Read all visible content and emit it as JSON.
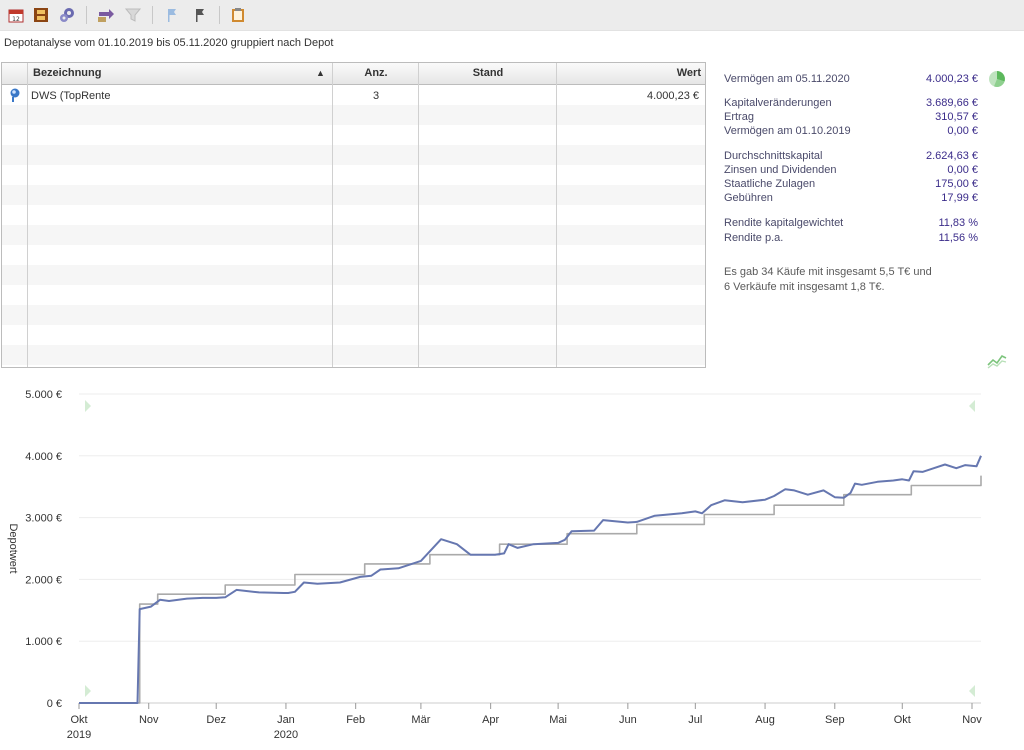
{
  "toolbar": {
    "buttons": [
      {
        "name": "calendar-icon",
        "color": "#c0392b"
      },
      {
        "name": "film-icon",
        "color": "#8b4513"
      },
      {
        "name": "gears-icon",
        "color": "#5a5aa0"
      },
      {
        "name": "transfer-icon",
        "color": "#7a5aa0"
      },
      {
        "name": "filter-icon",
        "color": "#c8c8c8"
      },
      {
        "name": "flag-blue-icon",
        "color": "#9bbbe0"
      },
      {
        "name": "flag-dark-icon",
        "color": "#4a4a4a"
      },
      {
        "name": "clipboard-icon",
        "color": "#d08a30"
      }
    ]
  },
  "subtitle": "Depotanalyse vom 01.10.2019 bis 05.11.2020 gruppiert nach Depot",
  "table": {
    "headers": {
      "bezeichnung": "Bezeichnung",
      "sort_indicator": "▲",
      "anz": "Anz.",
      "stand": "Stand",
      "wert": "Wert"
    },
    "rows": [
      {
        "bezeichnung": "DWS (TopRente",
        "anz": "3",
        "stand": "",
        "wert": "4.000,23 €"
      }
    ]
  },
  "summary": {
    "vermoegen_end": {
      "label": "Vermögen am 05.11.2020",
      "value": "4.000,23 €"
    },
    "kapitalveraenderungen": {
      "label": "Kapitalveränderungen",
      "value": "3.689,66 €"
    },
    "ertrag": {
      "label": "Ertrag",
      "value": "310,57 €"
    },
    "vermoegen_start": {
      "label": "Vermögen am 01.10.2019",
      "value": "0,00 €"
    },
    "durchschnittskapital": {
      "label": "Durchschnittskapital",
      "value": "2.624,63 €"
    },
    "zinsen": {
      "label": "Zinsen und Dividenden",
      "value": "0,00 €"
    },
    "zulagen": {
      "label": "Staatliche Zulagen",
      "value": "175,00 €"
    },
    "gebuehren": {
      "label": "Gebühren",
      "value": "17,99 €"
    },
    "rendite_kg": {
      "label": "Rendite kapitalgewichtet",
      "value": "11,83 %"
    },
    "rendite_pa": {
      "label": "Rendite p.a.",
      "value": "11,56 %"
    },
    "note_line1": "Es gab 34 Käufe mit insgesamt 5,5 T€ und",
    "note_line2": "6 Verkäufe mit insgesamt 1,8 T€."
  },
  "icons": {
    "pie": "pie-chart-icon",
    "trend": "trend-chart-icon",
    "depot": "depot-icon"
  },
  "colors": {
    "value_line": "#6677b0",
    "invested_line": "#aaaaaa",
    "summary_value": "#3b2c8a",
    "nav_arrow": "#d4ecd4"
  },
  "chart_data": {
    "type": "line",
    "ylabel": "Depotwert",
    "ylim": [
      0,
      5000
    ],
    "yticks": [
      {
        "value": 0,
        "label": "0 €"
      },
      {
        "value": 1000,
        "label": "1.000 €"
      },
      {
        "value": 2000,
        "label": "2.000 €"
      },
      {
        "value": 3000,
        "label": "3.000 €"
      },
      {
        "value": 4000,
        "label": "4.000 €"
      },
      {
        "value": 5000,
        "label": "5.000 €"
      }
    ],
    "xlim": [
      "2019-10-01",
      "2020-11-05"
    ],
    "xticks": [
      {
        "date": "2019-10-01",
        "label": "Okt",
        "label2": "2019"
      },
      {
        "date": "2019-11-01",
        "label": "Nov",
        "label2": ""
      },
      {
        "date": "2019-12-01",
        "label": "Dez",
        "label2": ""
      },
      {
        "date": "2020-01-01",
        "label": "Jan",
        "label2": "2020"
      },
      {
        "date": "2020-02-01",
        "label": "Feb",
        "label2": ""
      },
      {
        "date": "2020-03-01",
        "label": "Mär",
        "label2": ""
      },
      {
        "date": "2020-04-01",
        "label": "Apr",
        "label2": ""
      },
      {
        "date": "2020-05-01",
        "label": "Mai",
        "label2": ""
      },
      {
        "date": "2020-06-01",
        "label": "Jun",
        "label2": ""
      },
      {
        "date": "2020-07-01",
        "label": "Jul",
        "label2": ""
      },
      {
        "date": "2020-08-01",
        "label": "Aug",
        "label2": ""
      },
      {
        "date": "2020-09-01",
        "label": "Sep",
        "label2": ""
      },
      {
        "date": "2020-10-01",
        "label": "Okt",
        "label2": ""
      },
      {
        "date": "2020-11-01",
        "label": "Nov",
        "label2": ""
      }
    ],
    "grid": true,
    "series": [
      {
        "step": false,
        "color": "#6677b0",
        "points": [
          [
            "2019-10-01",
            0
          ],
          [
            "2019-10-27",
            0
          ],
          [
            "2019-10-28",
            1520
          ],
          [
            "2019-11-02",
            1560
          ],
          [
            "2019-11-06",
            1670
          ],
          [
            "2019-11-10",
            1650
          ],
          [
            "2019-11-18",
            1690
          ],
          [
            "2019-11-25",
            1700
          ],
          [
            "2019-12-01",
            1700
          ],
          [
            "2019-12-05",
            1710
          ],
          [
            "2019-12-10",
            1830
          ],
          [
            "2019-12-20",
            1790
          ],
          [
            "2019-12-31",
            1780
          ],
          [
            "2020-01-02",
            1780
          ],
          [
            "2020-01-05",
            1800
          ],
          [
            "2020-01-09",
            1950
          ],
          [
            "2020-01-15",
            1930
          ],
          [
            "2020-01-25",
            1950
          ],
          [
            "2020-02-03",
            2040
          ],
          [
            "2020-02-08",
            2060
          ],
          [
            "2020-02-12",
            2160
          ],
          [
            "2020-02-20",
            2180
          ],
          [
            "2020-03-01",
            2300
          ],
          [
            "2020-03-10",
            2650
          ],
          [
            "2020-03-17",
            2570
          ],
          [
            "2020-03-23",
            2400
          ],
          [
            "2020-04-03",
            2400
          ],
          [
            "2020-04-07",
            2420
          ],
          [
            "2020-04-09",
            2570
          ],
          [
            "2020-04-13",
            2510
          ],
          [
            "2020-04-20",
            2570
          ],
          [
            "2020-05-01",
            2590
          ],
          [
            "2020-05-04",
            2640
          ],
          [
            "2020-05-07",
            2780
          ],
          [
            "2020-05-17",
            2790
          ],
          [
            "2020-05-21",
            2960
          ],
          [
            "2020-06-01",
            2920
          ],
          [
            "2020-06-05",
            2930
          ],
          [
            "2020-06-13",
            3030
          ],
          [
            "2020-06-25",
            3070
          ],
          [
            "2020-07-01",
            3100
          ],
          [
            "2020-07-04",
            3070
          ],
          [
            "2020-07-08",
            3200
          ],
          [
            "2020-07-14",
            3280
          ],
          [
            "2020-07-22",
            3250
          ],
          [
            "2020-08-01",
            3290
          ],
          [
            "2020-08-05",
            3350
          ],
          [
            "2020-08-10",
            3460
          ],
          [
            "2020-08-14",
            3440
          ],
          [
            "2020-08-20",
            3370
          ],
          [
            "2020-08-27",
            3440
          ],
          [
            "2020-09-01",
            3330
          ],
          [
            "2020-09-05",
            3320
          ],
          [
            "2020-09-08",
            3400
          ],
          [
            "2020-09-10",
            3550
          ],
          [
            "2020-09-13",
            3530
          ],
          [
            "2020-09-20",
            3580
          ],
          [
            "2020-09-27",
            3600
          ],
          [
            "2020-10-01",
            3620
          ],
          [
            "2020-10-04",
            3600
          ],
          [
            "2020-10-06",
            3750
          ],
          [
            "2020-10-10",
            3740
          ],
          [
            "2020-10-15",
            3800
          ],
          [
            "2020-10-20",
            3860
          ],
          [
            "2020-10-25",
            3800
          ],
          [
            "2020-10-29",
            3850
          ],
          [
            "2020-11-03",
            3830
          ],
          [
            "2020-11-05",
            4000
          ]
        ]
      },
      {
        "step": true,
        "color": "#aaaaaa",
        "points": [
          [
            "2019-10-01",
            0
          ],
          [
            "2019-10-28",
            1600
          ],
          [
            "2019-11-05",
            1760
          ],
          [
            "2019-12-05",
            1910
          ],
          [
            "2020-01-05",
            2080
          ],
          [
            "2020-02-05",
            2250
          ],
          [
            "2020-03-05",
            2400
          ],
          [
            "2020-04-05",
            2570
          ],
          [
            "2020-05-05",
            2740
          ],
          [
            "2020-06-05",
            2890
          ],
          [
            "2020-07-05",
            3050
          ],
          [
            "2020-08-05",
            3200
          ],
          [
            "2020-09-05",
            3370
          ],
          [
            "2020-10-05",
            3520
          ],
          [
            "2020-11-05",
            3680
          ]
        ]
      }
    ]
  }
}
